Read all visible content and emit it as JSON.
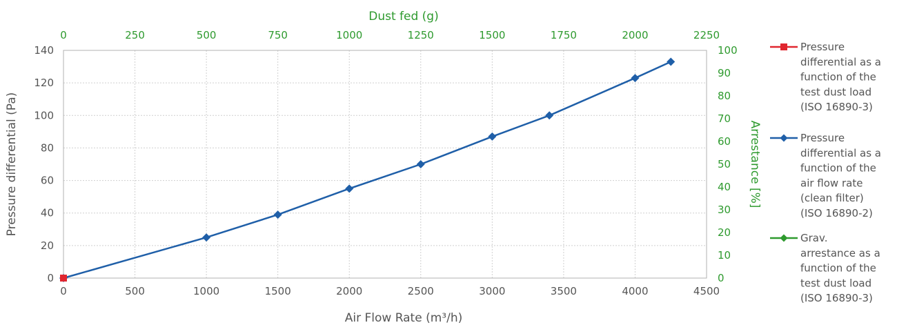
{
  "chart_data": {
    "type": "line",
    "xlabel": "Air Flow Rate (m³/h)",
    "ylabel": "Pressure differential  (Pa)",
    "x2label": "Dust fed (g)",
    "y2label": "Arrestance [%]",
    "xlim": [
      0,
      4500
    ],
    "ylim": [
      0,
      140
    ],
    "x2lim": [
      0,
      2250
    ],
    "y2lim": [
      0,
      100
    ],
    "xticks": [
      "0",
      "500",
      "1000",
      "1500",
      "2000",
      "2500",
      "3000",
      "3500",
      "4000",
      "4500"
    ],
    "yticks": [
      "0",
      "20",
      "40",
      "60",
      "80",
      "100",
      "120",
      "140"
    ],
    "x2ticks": [
      "0",
      "250",
      "500",
      "750",
      "1000",
      "1250",
      "1500",
      "1750",
      "2000",
      "2250"
    ],
    "y2ticks": [
      "0",
      "10",
      "20",
      "30",
      "40",
      "50",
      "60",
      "70",
      "80",
      "90",
      "100"
    ],
    "grid": true,
    "legend_position": "right",
    "series": [
      {
        "name": "Pressure differential as a function of the test dust load (ISO 16890-3)",
        "legend_lines": [
          "Pressure",
          "differential as a",
          "function of the",
          "test dust load",
          "(ISO 16890-3)"
        ],
        "color": "#e0262f",
        "marker": "square",
        "axes": "x-bottom/y-left",
        "x": [
          0
        ],
        "y": [
          0
        ]
      },
      {
        "name": "Pressure differential as a function of the air flow rate (clean filter) (ISO 16890-2)",
        "legend_lines": [
          "Pressure",
          "differential as a",
          "function of the",
          "air flow rate",
          "(clean filter)",
          "(ISO 16890-2)"
        ],
        "color": "#1f5fa8",
        "marker": "diamond",
        "axes": "x-bottom/y-left",
        "x": [
          0,
          1000,
          1500,
          2000,
          2500,
          3000,
          3400,
          4000,
          4250
        ],
        "y": [
          0,
          25,
          39,
          55,
          70,
          87,
          100,
          123,
          133
        ]
      },
      {
        "name": "Grav. arrestance as a function of the test dust load (ISO 16890-3)",
        "legend_lines": [
          "Grav.",
          "arrestance as a",
          "function of the",
          "test dust load",
          "(ISO 16890-3)"
        ],
        "color": "#2e9a2e",
        "marker": "diamond",
        "axes": "x-bottom/y-left",
        "x": [],
        "y": []
      }
    ]
  }
}
